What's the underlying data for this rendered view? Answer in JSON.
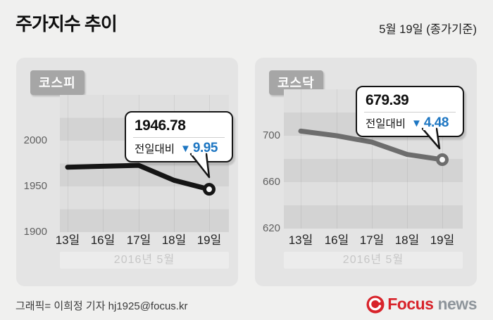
{
  "header": {
    "title": "주가지수 추이",
    "date_note": "5월 19일 (종가기준)"
  },
  "charts": [
    {
      "id": "kospi",
      "label": "코스피",
      "callout": {
        "value": "1946.78",
        "change_label": "전일대비",
        "direction_icon": "down-triangle",
        "change_value": "9.95"
      },
      "y_ticks": [
        "2000",
        "1950",
        "1900"
      ],
      "x_ticks": [
        "13일",
        "16일",
        "17일",
        "18일",
        "19일"
      ],
      "period_label": "2016년 5월",
      "line_color": "#151515"
    },
    {
      "id": "kosdaq",
      "label": "코스닥",
      "callout": {
        "value": "679.39",
        "change_label": "전일대비",
        "direction_icon": "down-triangle",
        "change_value": "4.48"
      },
      "y_ticks": [
        "700",
        "660",
        "620"
      ],
      "x_ticks": [
        "13일",
        "16일",
        "17일",
        "18일",
        "19일"
      ],
      "period_label": "2016년 5월",
      "line_color": "#6d6d6d"
    }
  ],
  "chart_data": [
    {
      "type": "line",
      "title": "코스피",
      "x": [
        "13일",
        "16일",
        "17일",
        "18일",
        "19일"
      ],
      "values": [
        1971,
        1972,
        1973,
        1956.73,
        1946.78
      ],
      "ylim": [
        1900,
        2050
      ],
      "y_ticks": [
        2000,
        1950,
        1900
      ],
      "annotation": {
        "last_value": 1946.78,
        "change": -9.95,
        "change_label": "전일대비"
      },
      "x_axis_note": "2016년 5월",
      "grid": "alternating-horizontal-bands",
      "legend": "none",
      "line_color": "#151515"
    },
    {
      "type": "line",
      "title": "코스닥",
      "x": [
        "13일",
        "16일",
        "17일",
        "18일",
        "19일"
      ],
      "values": [
        704,
        700,
        694.5,
        683.87,
        679.39
      ],
      "ylim": [
        620,
        740
      ],
      "y_ticks": [
        700,
        660,
        620
      ],
      "annotation": {
        "last_value": 679.39,
        "change": -4.48,
        "change_label": "전일대비"
      },
      "x_axis_note": "2016년 5월",
      "grid": "alternating-horizontal-bands",
      "legend": "none",
      "line_color": "#6d6d6d"
    }
  ],
  "footer": {
    "credit": "그래픽= 이희정 기자 hj1925@focus.kr",
    "logo_focus": "Focus",
    "logo_news": "news"
  },
  "colors": {
    "accent_blue": "#1d76c2",
    "logo_red": "#d8232a",
    "band_dark": "#d3d3d3",
    "band_light": "#dfdfdf",
    "card_bg": "#e4e4e4"
  }
}
